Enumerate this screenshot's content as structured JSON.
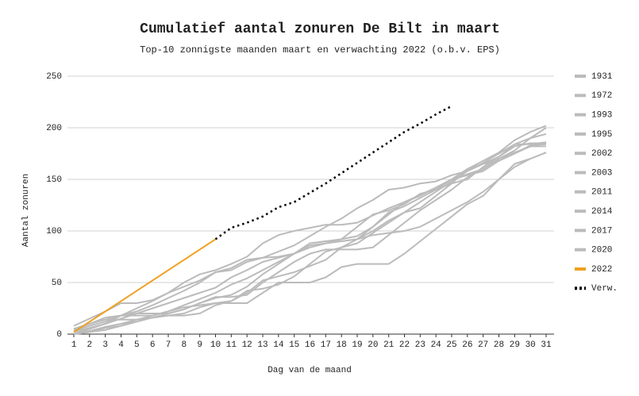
{
  "chart_data": {
    "type": "line",
    "title": "Cumulatief aantal zonuren De Bilt in maart",
    "subtitle": "Top-10 zonnigste maanden maart en verwachting 2022 (o.b.v. EPS)",
    "x_label": "Dag van de maand",
    "y_label": "Aantal zonuren",
    "x": [
      1,
      2,
      3,
      4,
      5,
      6,
      7,
      8,
      9,
      10,
      11,
      12,
      13,
      14,
      15,
      16,
      17,
      18,
      19,
      20,
      21,
      22,
      23,
      24,
      25,
      26,
      27,
      28,
      29,
      30,
      31
    ],
    "xlim": [
      1,
      31
    ],
    "xticks": [
      1,
      2,
      3,
      4,
      5,
      6,
      7,
      8,
      9,
      10,
      11,
      12,
      13,
      14,
      15,
      16,
      17,
      18,
      19,
      20,
      21,
      22,
      23,
      24,
      25,
      26,
      27,
      28,
      29,
      30,
      31
    ],
    "ylim": [
      0,
      250
    ],
    "yticks": [
      0,
      50,
      100,
      150,
      200,
      250
    ],
    "grid": true,
    "legend": "right",
    "series": [
      {
        "name": "1931",
        "color": "#bbbbbb",
        "style": "solid",
        "values": [
          8,
          15,
          22,
          30,
          30,
          33,
          40,
          50,
          58,
          62,
          68,
          75,
          88,
          96,
          100,
          103,
          106,
          106,
          108,
          115,
          122,
          128,
          135,
          142,
          150,
          160,
          165,
          172,
          182,
          185,
          185
        ]
      },
      {
        "name": "1972",
        "color": "#bbbbbb",
        "style": "solid",
        "values": [
          5,
          10,
          14,
          18,
          25,
          32,
          40,
          46,
          52,
          60,
          64,
          72,
          74,
          75,
          78,
          88,
          90,
          92,
          95,
          104,
          116,
          128,
          134,
          142,
          150,
          155,
          160,
          170,
          178,
          190,
          194
        ]
      },
      {
        "name": "1993",
        "color": "#bbbbbb",
        "style": "solid",
        "values": [
          3,
          8,
          12,
          18,
          22,
          28,
          35,
          42,
          50,
          60,
          62,
          70,
          74,
          80,
          86,
          95,
          104,
          112,
          122,
          130,
          140,
          142,
          146,
          148,
          154,
          158,
          166,
          175,
          184,
          184,
          186
        ]
      },
      {
        "name": "1995",
        "color": "#bbbbbb",
        "style": "solid",
        "values": [
          0,
          5,
          10,
          15,
          20,
          25,
          30,
          35,
          40,
          45,
          55,
          62,
          70,
          74,
          78,
          84,
          88,
          90,
          92,
          96,
          98,
          100,
          104,
          112,
          120,
          128,
          138,
          150,
          162,
          170,
          176
        ]
      },
      {
        "name": "2002",
        "color": "#bbbbbb",
        "style": "solid",
        "values": [
          2,
          6,
          10,
          18,
          20,
          20,
          20,
          24,
          30,
          36,
          36,
          38,
          50,
          60,
          70,
          78,
          82,
          82,
          82,
          84,
          96,
          108,
          120,
          130,
          140,
          152,
          160,
          170,
          176,
          182,
          185
        ]
      },
      {
        "name": "2003",
        "color": "#bbbbbb",
        "style": "solid",
        "values": [
          0,
          2,
          4,
          8,
          14,
          18,
          22,
          26,
          28,
          30,
          32,
          40,
          52,
          56,
          60,
          66,
          72,
          84,
          92,
          100,
          110,
          118,
          128,
          138,
          148,
          158,
          165,
          168,
          175,
          183,
          184
        ]
      },
      {
        "name": "2011",
        "color": "#bbbbbb",
        "style": "solid",
        "values": [
          0,
          3,
          7,
          10,
          14,
          16,
          20,
          24,
          30,
          35,
          38,
          46,
          58,
          68,
          78,
          88,
          90,
          90,
          92,
          104,
          118,
          124,
          132,
          140,
          150,
          154,
          158,
          168,
          175,
          182,
          182
        ]
      },
      {
        "name": "2014",
        "color": "#bbbbbb",
        "style": "solid",
        "values": [
          5,
          10,
          14,
          14,
          14,
          16,
          18,
          20,
          26,
          30,
          30,
          30,
          40,
          50,
          50,
          50,
          55,
          65,
          68,
          68,
          68,
          78,
          90,
          102,
          114,
          126,
          134,
          150,
          165,
          170,
          176
        ]
      },
      {
        "name": "2017",
        "color": "#bbbbbb",
        "style": "solid",
        "values": [
          0,
          2,
          6,
          8,
          12,
          16,
          18,
          18,
          20,
          28,
          32,
          42,
          44,
          48,
          56,
          68,
          80,
          84,
          88,
          98,
          108,
          118,
          122,
          134,
          146,
          160,
          168,
          176,
          188,
          196,
          202
        ]
      },
      {
        "name": "2020",
        "color": "#bbbbbb",
        "style": "solid",
        "values": [
          4,
          10,
          16,
          18,
          18,
          18,
          22,
          28,
          34,
          40,
          48,
          54,
          62,
          70,
          78,
          86,
          88,
          92,
          104,
          116,
          120,
          126,
          136,
          140,
          146,
          150,
          162,
          172,
          184,
          190,
          200
        ]
      },
      {
        "name": "2022",
        "color": "#f0a020",
        "style": "solid",
        "values": [
          2,
          12,
          22,
          32,
          42,
          52,
          62,
          72,
          82,
          92,
          null,
          null,
          null,
          null,
          null,
          null,
          null,
          null,
          null,
          null,
          null,
          null,
          null,
          null,
          null,
          null,
          null,
          null,
          null,
          null,
          null
        ]
      },
      {
        "name": "Verw.",
        "color": "#000000",
        "style": "dotted",
        "values": [
          null,
          null,
          null,
          null,
          null,
          null,
          null,
          null,
          null,
          92,
          103,
          108,
          114,
          123,
          128,
          137,
          146,
          156,
          166,
          176,
          186,
          196,
          204,
          213,
          221,
          null,
          null,
          null,
          null,
          null,
          null
        ]
      }
    ]
  }
}
